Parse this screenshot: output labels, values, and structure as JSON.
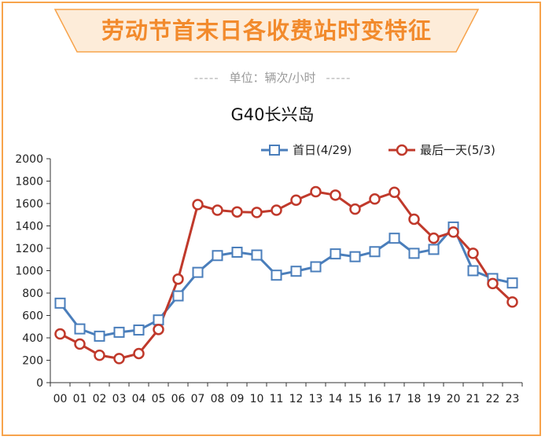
{
  "banner": {
    "title": "劳动节首末日各收费站时变特征"
  },
  "unit": {
    "dash_left": "-----",
    "label": "单位：辆次/小时",
    "dash_right": "-----"
  },
  "colors": {
    "frame": "#f7a34b",
    "banner_fill": "#fdecd9",
    "banner_text": "#f28a2c",
    "first_day": "#4a7ebb",
    "last_day": "#c0392b"
  },
  "chart_data": {
    "type": "line",
    "title": "G40长兴岛",
    "categories": [
      "00",
      "01",
      "02",
      "03",
      "04",
      "05",
      "06",
      "07",
      "08",
      "09",
      "10",
      "11",
      "12",
      "13",
      "14",
      "15",
      "16",
      "17",
      "18",
      "19",
      "20",
      "21",
      "22",
      "23"
    ],
    "ylim": [
      0,
      2000
    ],
    "yticks": [
      0,
      200,
      400,
      600,
      800,
      1000,
      1200,
      1400,
      1600,
      1800,
      2000
    ],
    "legend_position": "top-right",
    "grid": false,
    "series": [
      {
        "name": "首日(4/29)",
        "marker": "square",
        "color": "#4a7ebb",
        "values": [
          710,
          480,
          415,
          450,
          470,
          560,
          775,
          985,
          1135,
          1165,
          1140,
          960,
          995,
          1035,
          1150,
          1125,
          1170,
          1290,
          1155,
          1190,
          1390,
          1000,
          930,
          890
        ]
      },
      {
        "name": "最后一天(5/3)",
        "marker": "circle",
        "color": "#c0392b",
        "values": [
          435,
          345,
          245,
          215,
          260,
          475,
          925,
          1590,
          1540,
          1525,
          1520,
          1540,
          1630,
          1705,
          1675,
          1550,
          1640,
          1700,
          1460,
          1290,
          1345,
          1155,
          885,
          720
        ]
      }
    ]
  }
}
